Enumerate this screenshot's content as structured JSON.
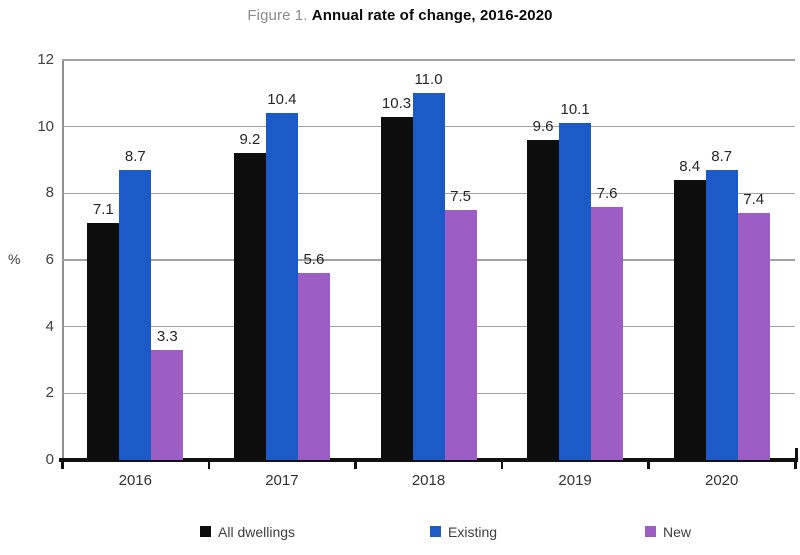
{
  "title": {
    "prefix": "Figure 1.",
    "text": "Annual rate of change, 2016-2020"
  },
  "chart_data": {
    "type": "bar",
    "title": "Figure 1. Annual rate of change, 2016-2020",
    "categories": [
      "2016",
      "2017",
      "2018",
      "2019",
      "2020"
    ],
    "series": [
      {
        "name": "All dwellings",
        "color": "#0d0d0d",
        "values": [
          7.1,
          9.2,
          10.3,
          9.6,
          8.4
        ]
      },
      {
        "name": "Existing",
        "color": "#1c5bc7",
        "values": [
          8.7,
          10.4,
          11.0,
          10.1,
          8.7
        ]
      },
      {
        "name": "New",
        "color": "#9c5ec4",
        "values": [
          3.3,
          5.6,
          7.5,
          7.6,
          7.4
        ]
      }
    ],
    "xlabel": "",
    "ylabel": "%",
    "ylim": [
      0,
      12
    ],
    "yticks": [
      0,
      2,
      4,
      6,
      8,
      10,
      12
    ],
    "grid": true,
    "legend_position": "bottom",
    "bar_value_labels": true
  },
  "colors": {
    "gridline": "#a3a3a3",
    "axis": "#111111",
    "title_prefix": "#8c8c8c",
    "title_text": "#0a0a0a"
  }
}
